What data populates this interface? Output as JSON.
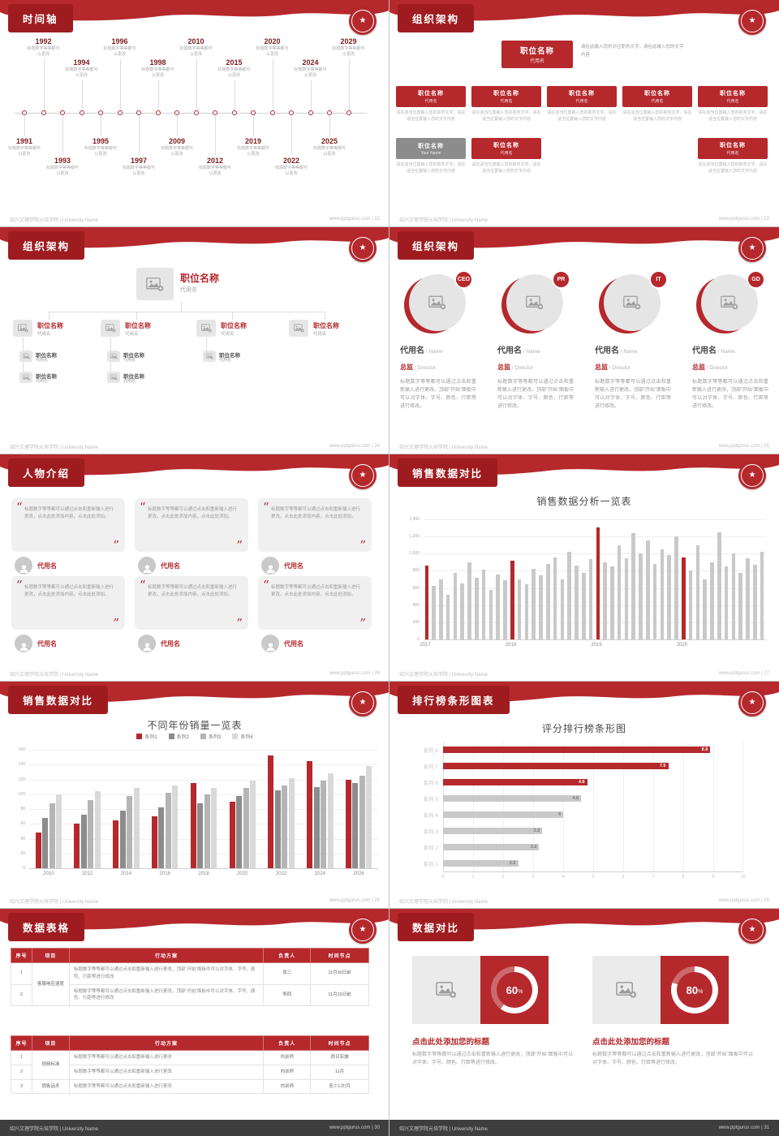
{
  "brand": {
    "red": "#b5282c",
    "dark_red": "#9e1c20",
    "gray_bar": "#c9c9c9"
  },
  "footer": {
    "left": "绍兴文理学院元培学院 | University Name",
    "site": "www.pptgurus.com"
  },
  "slides": {
    "timeline": {
      "title": "时间轴",
      "page": "22",
      "caption": "标题数字等等都可以更改",
      "events": [
        {
          "year": "1991",
          "side": "bottom",
          "far": false
        },
        {
          "year": "1992",
          "side": "top",
          "far": true
        },
        {
          "year": "1993",
          "side": "bottom",
          "far": true
        },
        {
          "year": "1994",
          "side": "top",
          "far": false
        },
        {
          "year": "1995",
          "side": "bottom",
          "far": false
        },
        {
          "year": "1996",
          "side": "top",
          "far": true
        },
        {
          "year": "1997",
          "side": "bottom",
          "far": true
        },
        {
          "year": "1998",
          "side": "top",
          "far": false
        },
        {
          "year": "2009",
          "side": "bottom",
          "far": false
        },
        {
          "year": "2010",
          "side": "top",
          "far": true
        },
        {
          "year": "2012",
          "side": "bottom",
          "far": true
        },
        {
          "year": "2015",
          "side": "top",
          "far": false
        },
        {
          "year": "2019",
          "side": "bottom",
          "far": false
        },
        {
          "year": "2020",
          "side": "top",
          "far": true
        },
        {
          "year": "2022",
          "side": "bottom",
          "far": true
        },
        {
          "year": "2024",
          "side": "top",
          "far": false
        },
        {
          "year": "2025",
          "side": "bottom",
          "far": false
        },
        {
          "year": "2029",
          "side": "top",
          "far": true
        }
      ]
    },
    "org_boxes": {
      "title": "组织架构",
      "page": "23",
      "root": {
        "name": "职位名称",
        "sub": "代用名"
      },
      "root_desc": "请在此输入您的对应职务文字，请在此输入您的文字内容",
      "node_desc": "请在适当位置输入您的职务文字，请在适当位置输入您的文字内容",
      "level1": [
        {
          "name": "职位名称",
          "sub": "代用名"
        },
        {
          "name": "职位名称",
          "sub": "代用名"
        },
        {
          "name": "职位名称",
          "sub": "代用名"
        },
        {
          "name": "职位名称",
          "sub": "代用名"
        },
        {
          "name": "职位名称",
          "sub": "代用名"
        }
      ],
      "level2": [
        {
          "name": "职位名称",
          "sub": "Your Name",
          "variant": "gray",
          "col": 0
        },
        {
          "name": "职位名称",
          "sub": "代用名",
          "variant": "red",
          "col": 1
        },
        {
          "name": "职位名称",
          "sub": "代用名",
          "variant": "red",
          "col": 4
        }
      ]
    },
    "org_tree": {
      "title": "组织架构",
      "page": "24",
      "root": {
        "name": "职位名称",
        "sub": "代用名"
      },
      "children": [
        {
          "name": "职位名称",
          "sub": "代用名",
          "subs": [
            {
              "name": "职位名称",
              "sub": "代用名"
            },
            {
              "name": "职位名称",
              "sub": "代用名"
            }
          ]
        },
        {
          "name": "职位名称",
          "sub": "代用名",
          "subs": [
            {
              "name": "职位名称",
              "sub": "代用名"
            },
            {
              "name": "职位名称",
              "sub": "代用名"
            }
          ]
        },
        {
          "name": "职位名称",
          "sub": "代用名",
          "subs": [
            {
              "name": "职位名称",
              "sub": "代用名"
            }
          ]
        },
        {
          "name": "职位名称",
          "sub": "代用名",
          "subs": []
        }
      ]
    },
    "org_members": {
      "title": "组织架构",
      "page": "25",
      "name": "代用名",
      "name_en": "Name",
      "role": "总监",
      "role_en": "Director",
      "desc": "标题数字等等都可以通过点击和重新输入进行更改，顶部“开始”面板中可以对字体、字号、颜色、行距等进行修改。",
      "members": [
        {
          "badge": "CEO"
        },
        {
          "badge": "PR"
        },
        {
          "badge": "IT"
        },
        {
          "badge": "GD"
        }
      ]
    },
    "people": {
      "title": "人物介绍",
      "page": "26",
      "name": "代用名",
      "quote": "标题数字等等都可以通过点击和重新输入进行更改，点击此处添加内容，点击此处添加。",
      "card_count": 6
    },
    "sales_monthly": {
      "title": "销售数据对比",
      "page": "27"
    },
    "sales_grouped": {
      "title": "销售数据对比",
      "page": "28"
    },
    "ranking": {
      "title": "排行榜条形图表",
      "page": "29"
    },
    "tables": {
      "title": "数据表格",
      "page": "30",
      "headers": [
        "序号",
        "项目",
        "行动方案",
        "负责人",
        "时间节点"
      ],
      "table1": {
        "project": "客服响应速度",
        "rows": [
          {
            "no": "1",
            "plan": "标题数字等等都可以通过点击和重新输入进行更改，顶部“开始”面板中可以对字体、字号、颜色、行距等进行修改",
            "owner": "张三",
            "time": "11月30日前"
          },
          {
            "no": "2",
            "plan": "标题数字等等都可以通过点击和重新输入进行更改，顶部“开始”面板中可以对字体、字号、颜色、行距等进行修改",
            "owner": "李四",
            "time": "11月15日前"
          }
        ]
      },
      "table2": {
        "rows": [
          {
            "no": "1",
            "project": "视频标准",
            "span": 2,
            "plan": "标题数字等等都可以通过点击和重新输入进行更改",
            "owner": "内训师",
            "time": "即日实施"
          },
          {
            "no": "2",
            "plan": "标题数字等等都可以通过点击和重新输入进行更改",
            "owner": "内训师",
            "time": "11月"
          },
          {
            "no": "3",
            "project": "销售话术",
            "span": 1,
            "plan": "标题数字等等都可以通过点击和重新输入进行更改",
            "owner": "内训师",
            "time": "至少1次/月"
          }
        ]
      }
    },
    "compare": {
      "title": "数据对比",
      "page": "31",
      "heading": "点击此处添加您的标题",
      "desc": "标题数字等等都可以通过点击和重新输入进行更改，顶部“开始”面板中可以对字体、字号、颜色、行距等进行修改。"
    }
  },
  "chart_data": [
    {
      "type": "bar",
      "title": "销售数据分析一览表",
      "ylabel": "",
      "xlabel": "",
      "ylim": [
        0,
        1400
      ],
      "ytick": 200,
      "x_labels": [
        {
          "label": "2017",
          "index": 0
        },
        {
          "label": "2018",
          "index": 12
        },
        {
          "label": "2019",
          "index": 24
        },
        {
          "label": "2020",
          "index": 36
        }
      ],
      "red_indices": [
        0,
        12,
        24,
        36
      ],
      "bar_color": "#c9c9c9",
      "highlight_color": "#b5282c",
      "values": [
        860,
        620,
        700,
        520,
        780,
        650,
        900,
        720,
        810,
        580,
        760,
        690,
        920,
        700,
        640,
        820,
        750,
        880,
        960,
        700,
        1020,
        860,
        780,
        940,
        1310,
        900,
        850,
        1100,
        950,
        1240,
        1000,
        1150,
        880,
        1050,
        980,
        1200,
        960,
        800,
        1100,
        700,
        900,
        1250,
        850,
        1000,
        780,
        950,
        870,
        1020
      ]
    },
    {
      "type": "bar",
      "title": "不同年份销量一览表",
      "categories": [
        "2010",
        "2012",
        "2014",
        "2016",
        "2018",
        "2020",
        "2022",
        "2024",
        "2026"
      ],
      "ylim": [
        0,
        160
      ],
      "ytick": 20,
      "legend_position": "top",
      "series": [
        {
          "name": "系列1",
          "color": "#b5282c",
          "values": [
            48,
            60,
            65,
            70,
            115,
            90,
            152,
            145,
            120
          ]
        },
        {
          "name": "系列2",
          "color": "#8c8c8c",
          "values": [
            68,
            72,
            78,
            82,
            88,
            98,
            105,
            110,
            115
          ]
        },
        {
          "name": "系列3",
          "color": "#b5b5b5",
          "values": [
            88,
            92,
            98,
            102,
            100,
            108,
            112,
            118,
            125
          ]
        },
        {
          "name": "系列4",
          "color": "#d9d9d9",
          "values": [
            100,
            104,
            108,
            112,
            108,
            118,
            122,
            128,
            138
          ]
        }
      ]
    },
    {
      "type": "bar",
      "orientation": "horizontal",
      "title": "评分排行榜条形图",
      "categories": [
        "系列 1",
        "系列 2",
        "系列 3",
        "系列 4",
        "系列 5",
        "系列 6",
        "系列 7",
        "系列 8"
      ],
      "values": [
        2.5,
        3.2,
        3.3,
        4,
        4.6,
        4.8,
        7.5,
        8.9
      ],
      "colors": [
        "#c9c9c9",
        "#c9c9c9",
        "#c9c9c9",
        "#c9c9c9",
        "#c9c9c9",
        "#b5282c",
        "#b5282c",
        "#b5282c"
      ],
      "xlim": [
        0,
        10
      ],
      "xtick": 1
    },
    {
      "type": "donut",
      "title": "数据对比",
      "values": [
        {
          "label": "点击此处添加您的标题",
          "percent": 60
        },
        {
          "label": "点击此处添加您的标题",
          "percent": 80
        }
      ],
      "ring_color": "#ffffff",
      "track_color": "rgba(255,255,255,0.3)",
      "bg": "#b5282c"
    }
  ]
}
